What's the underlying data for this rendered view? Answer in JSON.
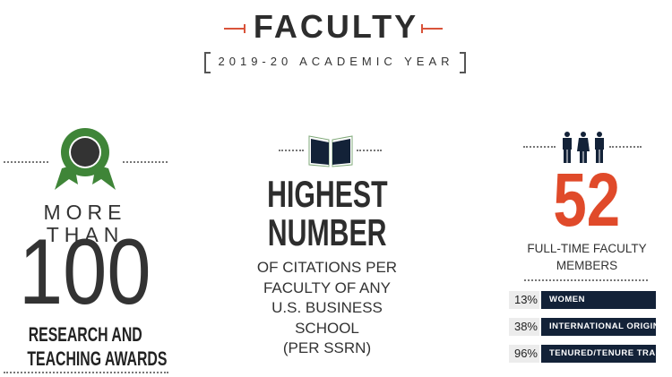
{
  "header": {
    "title": "FACULTY",
    "subtitle": "2019-20 ACADEMIC YEAR"
  },
  "colors": {
    "accent": "#e04a2a",
    "green": "#3f8538",
    "navy": "#132238",
    "text": "#333333"
  },
  "awards": {
    "icon": "award-ribbon-icon",
    "prefix": "MORE THAN",
    "number": "100",
    "line1": "RESEARCH AND",
    "line2": "TEACHING AWARDS"
  },
  "citations": {
    "icon": "open-book-icon",
    "headline1": "HIGHEST",
    "headline2": "NUMBER",
    "lines": [
      "OF CITATIONS PER",
      "FACULTY OF ANY",
      "U.S. BUSINESS",
      "SCHOOL",
      "(PER SSRN)"
    ]
  },
  "faculty": {
    "icon": "people-icon",
    "number": "52",
    "line1": "FULL-TIME FACULTY",
    "line2": "MEMBERS",
    "stats": [
      {
        "percent": "13%",
        "label": "WOMEN"
      },
      {
        "percent": "38%",
        "label": "INTERNATIONAL ORIGIN"
      },
      {
        "percent": "96%",
        "label": "TENURED/TENURE TRACK"
      }
    ]
  }
}
